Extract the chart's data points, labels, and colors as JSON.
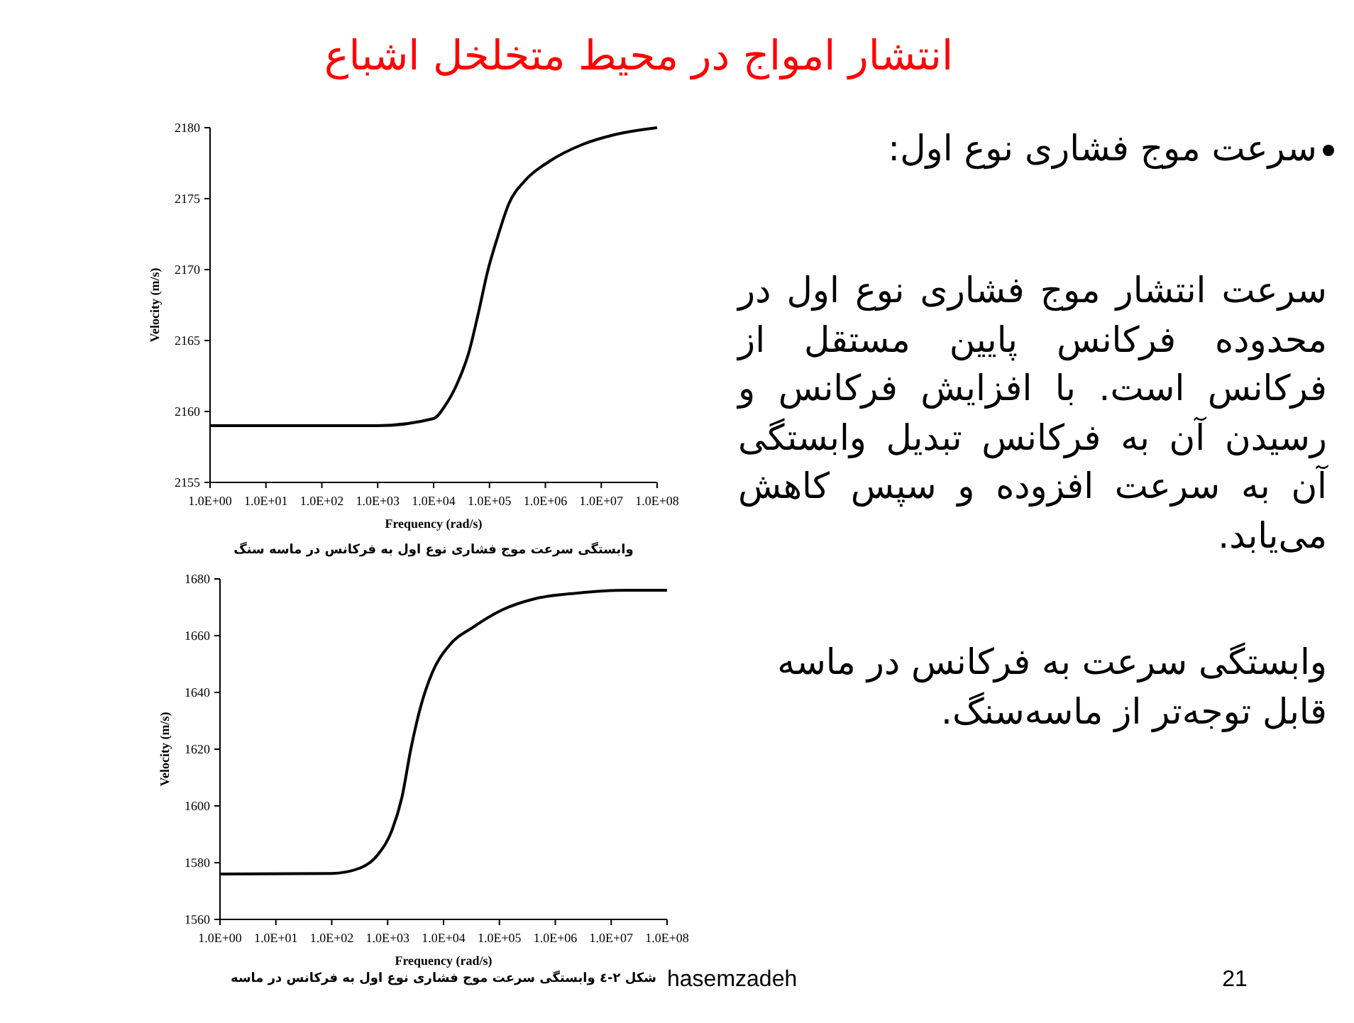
{
  "chart_data": [
    {
      "type": "line",
      "xlabel": "Frequency (rad/s)",
      "ylabel": "Velocity (m/s)",
      "log": "x",
      "annotations": [
        "وابستگی سرعت موج فشاری نوع اول به فرکانس در ماسه سنگ"
      ],
      "xlim": [
        1,
        100000000
      ],
      "ylim": [
        2155,
        2180
      ],
      "xticks": [
        {
          "value": 1,
          "label": "1.0E+00"
        },
        {
          "value": 10,
          "label": "1.0E+01"
        },
        {
          "value": 100,
          "label": "1.0E+02"
        },
        {
          "value": 1000,
          "label": "1.0E+03"
        },
        {
          "value": 10000,
          "label": "1.0E+04"
        },
        {
          "value": 100000,
          "label": "1.0E+05"
        },
        {
          "value": 1000000,
          "label": "1.0E+06"
        },
        {
          "value": 10000000,
          "label": "1.0E+07"
        },
        {
          "value": 100000000,
          "label": "1.0E+08"
        }
      ],
      "yticks": [
        2155,
        2160,
        2165,
        2170,
        2175,
        2180
      ],
      "grid": false,
      "marker": "none",
      "line_style": "solid",
      "series": [
        {
          "color": "#000000",
          "x": [
            1,
            1000,
            10000,
            16000,
            26000,
            43000,
            63000,
            93000,
            140000,
            220000,
            440000,
            1150000,
            4500000,
            17000000,
            100000000
          ],
          "values": [
            2159,
            2159,
            2159.5,
            2160.4,
            2161.9,
            2164.2,
            2166.9,
            2169.9,
            2172.3,
            2174.6,
            2176.3,
            2177.6,
            2178.8,
            2179.5,
            2180
          ]
        }
      ]
    },
    {
      "type": "line",
      "xlabel": "Frequency (rad/s)",
      "ylabel": "Velocity (m/s)",
      "log": "x",
      "annotations": [
        "شکل ۲-٤ وابستگی سرعت موج فشاری نوع اول به فرکانس در ماسه"
      ],
      "xlim": [
        1,
        100000000
      ],
      "ylim": [
        1560,
        1680
      ],
      "xticks": [
        {
          "value": 1,
          "label": "1.0E+00"
        },
        {
          "value": 10,
          "label": "1.0E+01"
        },
        {
          "value": 100,
          "label": "1.0E+02"
        },
        {
          "value": 1000,
          "label": "1.0E+03"
        },
        {
          "value": 10000,
          "label": "1.0E+04"
        },
        {
          "value": 100000,
          "label": "1.0E+05"
        },
        {
          "value": 1000000,
          "label": "1.0E+06"
        },
        {
          "value": 10000000,
          "label": "1.0E+07"
        },
        {
          "value": 100000000,
          "label": "1.0E+08"
        }
      ],
      "yticks": [
        1560,
        1580,
        1600,
        1620,
        1640,
        1660,
        1680
      ],
      "grid": false,
      "marker": "none",
      "line_style": "solid",
      "series": [
        {
          "color": "#000000",
          "x": [
            1,
            100,
            310,
            680,
            1200,
            1800,
            2600,
            3900,
            6300,
            12600,
            34000,
            110000,
            430000,
            2500000,
            18000000,
            100000000
          ],
          "values": [
            1576,
            1576.2,
            1578,
            1583,
            1591.5,
            1603,
            1620,
            1635,
            1647,
            1656.5,
            1663,
            1669,
            1673,
            1675,
            1676,
            1676
          ]
        }
      ]
    },
    {
      "type": "other",
      "title": "انتشار امواج در محیط متخلخل اشباع",
      "annotations": [
        "سرعت موج فشاری نوع اول:",
        "سرعت انتشار موج فشاری نوع اول در محدوده فرکانس پایین مستقل از فرکانس است. با افزایش فرکانس و رسیدن آن به فرکانس تبدیل وابستگی آن به سرعت افزوده و سپس کاهش می‌یابد.",
        "وابستگی سرعت به فرکانس در ماسه قابل توجه‌تر از ماسه‌سنگ.",
        "hasemzadeh",
        "21"
      ]
    }
  ]
}
